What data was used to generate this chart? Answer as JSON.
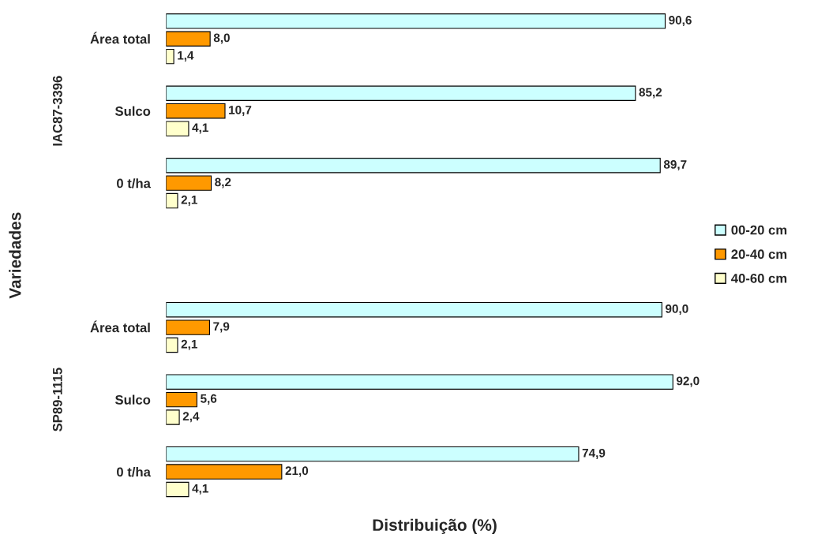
{
  "chart_data": {
    "type": "bar",
    "orientation": "horizontal",
    "xlabel": "Distribuição (%)",
    "ylabel": "Variedades",
    "categories": [
      "Área total",
      "Sulco",
      "0 t/ha",
      null,
      "Área total",
      "Sulco",
      "0 t/ha"
    ],
    "series": [
      {
        "name": "00-20 cm",
        "color": "#ccffff",
        "values": [
          90.6,
          85.2,
          89.7,
          null,
          90.0,
          92.0,
          74.9
        ],
        "value_labels": [
          "90,6",
          "85,2",
          "89,7",
          null,
          "90,0",
          "92,0",
          "74,9"
        ]
      },
      {
        "name": "20-40 cm",
        "color": "#ff9900",
        "values": [
          8.0,
          10.7,
          8.2,
          null,
          7.9,
          5.6,
          21.0
        ],
        "value_labels": [
          "8,0",
          "10,7",
          "8,2",
          null,
          "7,9",
          "5,6",
          "21,0"
        ]
      },
      {
        "name": "40-60 cm",
        "color": "#ffffcc",
        "values": [
          1.4,
          4.1,
          2.1,
          null,
          2.1,
          2.4,
          4.1
        ],
        "value_labels": [
          "1,4",
          "4,1",
          "2,1",
          null,
          "2,1",
          "2,4",
          "4,1"
        ]
      }
    ],
    "annotations": [
      "IAC87-3396",
      "SP89-1115"
    ],
    "tick_labels": "y",
    "legend": "right",
    "grid": false
  }
}
